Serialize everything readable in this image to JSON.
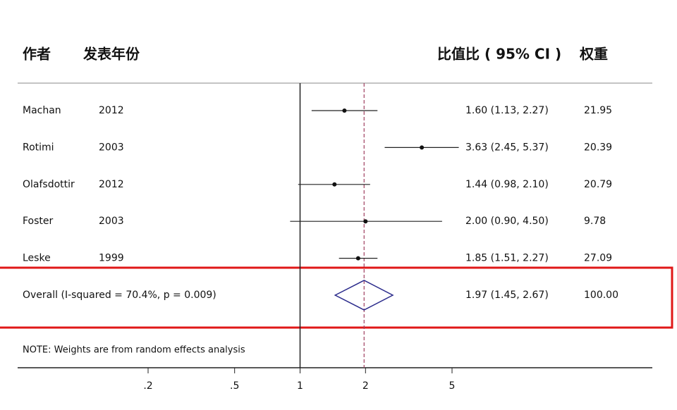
{
  "chart_data": {
    "type": "forest",
    "headers": [
      "作者",
      "发表年份",
      "比值比 ( 95% CI )",
      "权重"
    ],
    "studies": [
      {
        "author": "Machan",
        "year": "2012",
        "or": 1.6,
        "ci": [
          1.13,
          2.27
        ],
        "label": "1.60 (1.13, 2.27)",
        "weight": "21.95"
      },
      {
        "author": "Rotimi",
        "year": "2003",
        "or": 3.63,
        "ci": [
          2.45,
          5.37
        ],
        "label": "3.63 (2.45, 5.37)",
        "weight": "20.39"
      },
      {
        "author": "Olafsdottir",
        "year": "2012",
        "or": 1.44,
        "ci": [
          0.98,
          2.1
        ],
        "label": "1.44 (0.98, 2.10)",
        "weight": "20.79"
      },
      {
        "author": "Foster",
        "year": "2003",
        "or": 2.0,
        "ci": [
          0.9,
          4.5
        ],
        "label": "2.00 (0.90, 4.50)",
        "weight": "9.78"
      },
      {
        "author": "Leske",
        "year": "1999",
        "or": 1.85,
        "ci": [
          1.51,
          2.27
        ],
        "label": "1.85 (1.51, 2.27)",
        "weight": "27.09"
      }
    ],
    "overall": {
      "name": "Overall  (I-squared = 70.4%, p = 0.009)",
      "or": 1.97,
      "ci": [
        1.45,
        2.67
      ],
      "label": "1.97 (1.45, 2.67)",
      "weight": "100.00"
    },
    "note": "NOTE: Weights are from random effects analysis",
    "xscale": "log",
    "xlim": [
      0.2,
      5
    ],
    "xticks": [
      {
        "value": 0.2,
        "label": ".2"
      },
      {
        "value": 0.5,
        "label": ".5"
      },
      1,
      2,
      5
    ],
    "null_value": 1,
    "diamond_color": "#2c2c8c",
    "ref_color": "#a04060",
    "highlight_color": "#e01818"
  }
}
